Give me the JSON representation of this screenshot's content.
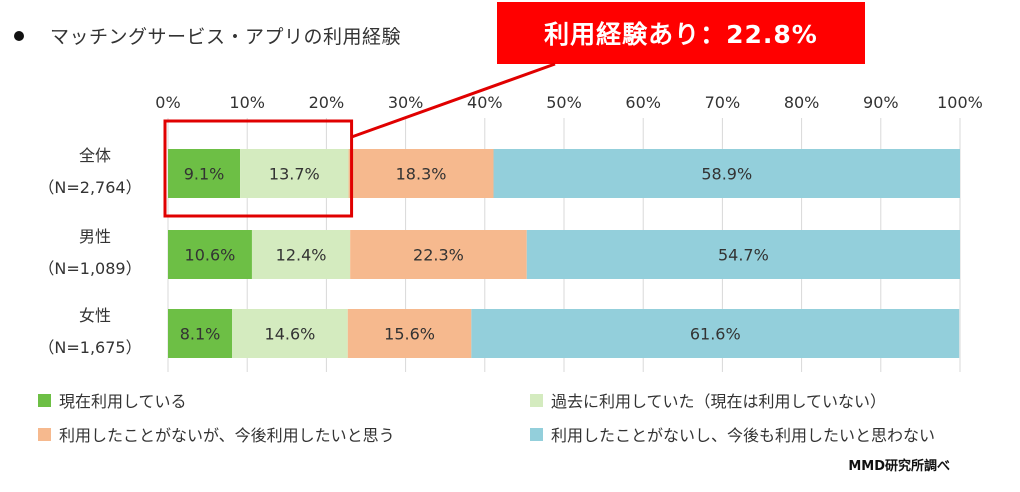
{
  "title": "マッチングサービス・アプリの利用経験",
  "callout": "利用経験あり：22.8%",
  "source": "MMD研究所調べ",
  "colors": {
    "current": "#6dbf45",
    "past": "#d4ebbf",
    "never_maybe": "#f6b98e",
    "never_no": "#93cfdb",
    "highlight": "#e00000"
  },
  "chart_data": {
    "type": "bar",
    "orientation": "horizontal",
    "stacked": true,
    "categories": [
      {
        "label": "全体",
        "sub": "（N=2,764）"
      },
      {
        "label": "男性",
        "sub": "（N=1,089）"
      },
      {
        "label": "女性",
        "sub": "（N=1,675）"
      }
    ],
    "xlim": [
      0,
      100
    ],
    "ticks": [
      "0%",
      "10%",
      "20%",
      "30%",
      "40%",
      "50%",
      "60%",
      "70%",
      "80%",
      "90%",
      "100%"
    ],
    "grid": true,
    "legend_position": "bottom",
    "series": [
      {
        "name": "現在利用している",
        "color": "#6dbf45",
        "values": [
          9.1,
          10.6,
          8.1
        ]
      },
      {
        "name": "過去に利用していた（現在は利用していない）",
        "color": "#d4ebbf",
        "values": [
          13.7,
          12.4,
          14.6
        ]
      },
      {
        "name": "利用したことがないが、今後利用したいと思う",
        "color": "#f6b98e",
        "values": [
          18.3,
          22.3,
          15.6
        ]
      },
      {
        "name": "利用したことがないし、今後も利用したいと思わない",
        "color": "#93cfdb",
        "values": [
          58.9,
          54.7,
          61.6
        ]
      }
    ],
    "value_labels": [
      [
        "9.1%",
        "13.7%",
        "18.3%",
        "58.9%"
      ],
      [
        "10.6%",
        "12.4%",
        "22.3%",
        "54.7%"
      ],
      [
        "8.1%",
        "14.6%",
        "15.6%",
        "61.6%"
      ]
    ]
  }
}
